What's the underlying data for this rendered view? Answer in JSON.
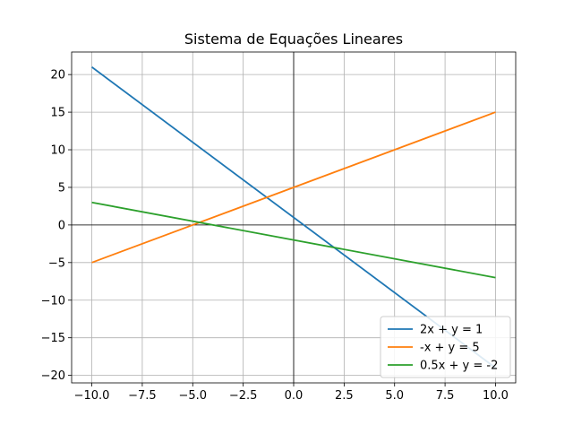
{
  "chart_data": {
    "type": "line",
    "title": "Sistema de Equações Lineares",
    "xlabel": "",
    "ylabel": "",
    "xlim": [
      -11,
      11
    ],
    "ylim": [
      -21,
      23
    ],
    "x_ticks": [
      -10,
      -7.5,
      -5,
      -2.5,
      0,
      2.5,
      5,
      7.5,
      10
    ],
    "x_tick_labels": [
      "−10.0",
      "−7.5",
      "−5.0",
      "−2.5",
      "0.0",
      "2.5",
      "5.0",
      "7.5",
      "10.0"
    ],
    "y_ticks": [
      -20,
      -15,
      -10,
      -5,
      0,
      5,
      10,
      15,
      20
    ],
    "y_tick_labels": [
      "−20",
      "−15",
      "−10",
      "−5",
      "0",
      "5",
      "10",
      "15",
      "20"
    ],
    "grid": true,
    "axes_lines_at_zero": true,
    "legend_position": "lower-right",
    "series": [
      {
        "name": "2x + y = 1",
        "color": "#1f77b4",
        "x": [
          -10,
          10
        ],
        "y": [
          21,
          -19
        ]
      },
      {
        "name": "-x + y = 5",
        "color": "#ff7f0e",
        "x": [
          -10,
          10
        ],
        "y": [
          -5,
          15
        ]
      },
      {
        "name": "0.5x + y = -2",
        "color": "#2ca02c",
        "x": [
          -10,
          10
        ],
        "y": [
          3,
          -7
        ]
      }
    ]
  }
}
